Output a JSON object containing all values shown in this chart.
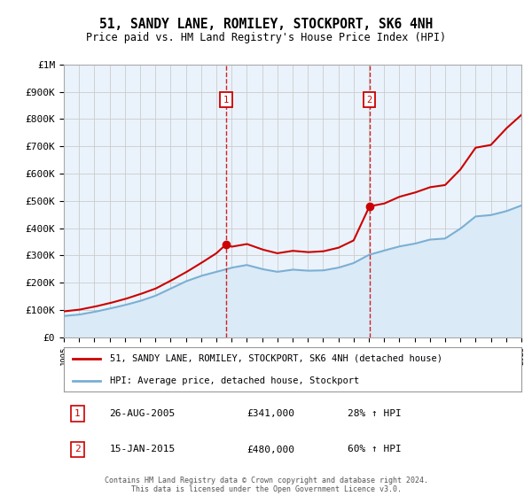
{
  "title": "51, SANDY LANE, ROMILEY, STOCKPORT, SK6 4NH",
  "subtitle": "Price paid vs. HM Land Registry's House Price Index (HPI)",
  "ylim": [
    0,
    1000000
  ],
  "yticks": [
    0,
    100000,
    200000,
    300000,
    400000,
    500000,
    600000,
    700000,
    800000,
    900000,
    1000000
  ],
  "ytick_labels": [
    "£0",
    "£100K",
    "£200K",
    "£300K",
    "£400K",
    "£500K",
    "£600K",
    "£700K",
    "£800K",
    "£900K",
    "£1M"
  ],
  "x_start_year": 1995,
  "x_end_year": 2025,
  "red_line_color": "#cc0000",
  "blue_line_color": "#7bafd4",
  "fill_color": "#daeaf7",
  "background_color": "#eaf3fb",
  "marker1_date": 2005.65,
  "marker1_price": 341000,
  "marker1_label": "1",
  "marker1_text": "26-AUG-2005",
  "marker1_price_text": "£341,000",
  "marker1_hpi_text": "28% ↑ HPI",
  "marker2_date": 2015.04,
  "marker2_price": 480000,
  "marker2_label": "2",
  "marker2_text": "15-JAN-2015",
  "marker2_price_text": "£480,000",
  "marker2_hpi_text": "60% ↑ HPI",
  "legend_line1": "51, SANDY LANE, ROMILEY, STOCKPORT, SK6 4NH (detached house)",
  "legend_line2": "HPI: Average price, detached house, Stockport",
  "footer": "Contains HM Land Registry data © Crown copyright and database right 2024.\nThis data is licensed under the Open Government Licence v3.0.",
  "grid_color": "#cccccc",
  "border_color": "#aaaaaa"
}
